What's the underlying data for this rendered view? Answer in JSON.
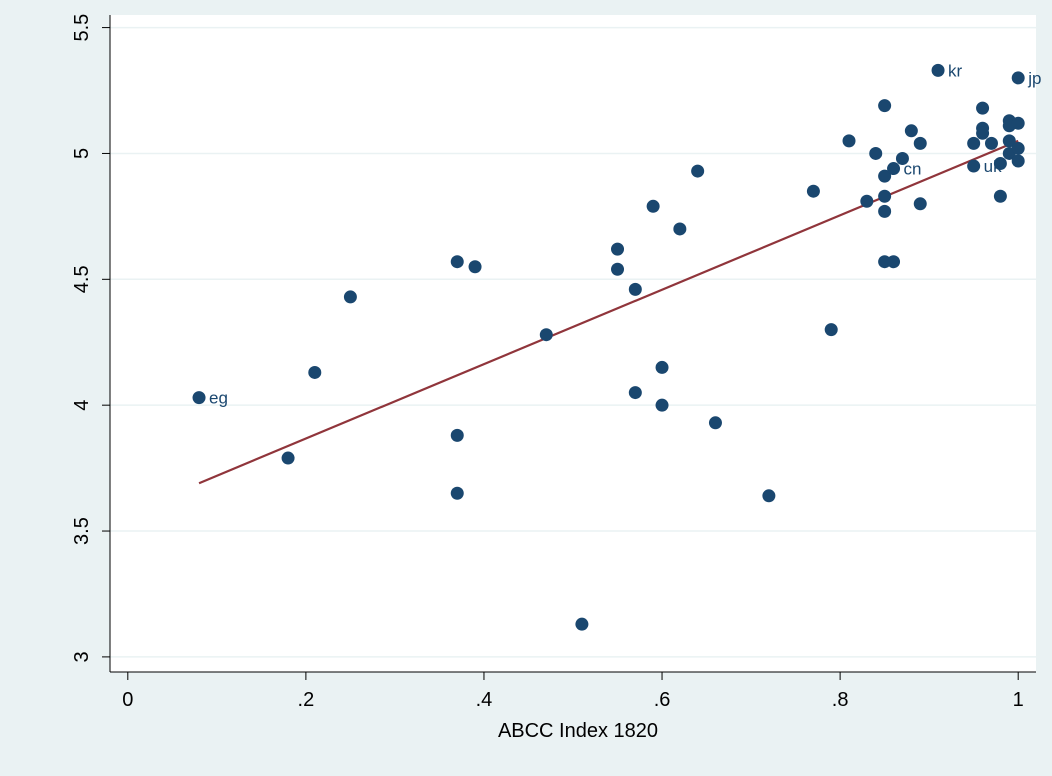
{
  "colors": {
    "outer_background": "#eaf2f3",
    "plot_background": "#ffffff",
    "gridline": "#eaf2f3",
    "marker": "#1a476f",
    "fit_line": "#90353b",
    "axis": "#000000"
  },
  "chart_data": {
    "type": "scatter",
    "title": "",
    "xlabel": "ABCC Index 1820",
    "ylabel": "",
    "xlim": [
      -0.02,
      1.02
    ],
    "ylim": [
      2.94,
      5.55
    ],
    "x_ticks": [
      0,
      0.2,
      0.4,
      0.6,
      0.8,
      1
    ],
    "x_tick_labels": [
      "0",
      ".2",
      ".4",
      ".6",
      ".8",
      "1"
    ],
    "y_ticks": [
      3,
      3.5,
      4,
      4.5,
      5,
      5.5
    ],
    "y_tick_labels": [
      "3",
      "3.5",
      "4",
      "4.5",
      "5",
      "5.5"
    ],
    "grid": true,
    "legend": "none",
    "series": [
      {
        "points": [
          {
            "x": 0.08,
            "y": 4.03,
            "label": "eg"
          },
          {
            "x": 0.18,
            "y": 3.79
          },
          {
            "x": 0.21,
            "y": 4.13
          },
          {
            "x": 0.25,
            "y": 4.43
          },
          {
            "x": 0.37,
            "y": 4.57
          },
          {
            "x": 0.37,
            "y": 3.88
          },
          {
            "x": 0.37,
            "y": 3.65
          },
          {
            "x": 0.39,
            "y": 4.55
          },
          {
            "x": 0.47,
            "y": 4.28
          },
          {
            "x": 0.51,
            "y": 3.13
          },
          {
            "x": 0.55,
            "y": 4.62
          },
          {
            "x": 0.55,
            "y": 4.54
          },
          {
            "x": 0.57,
            "y": 4.46
          },
          {
            "x": 0.57,
            "y": 4.05
          },
          {
            "x": 0.59,
            "y": 4.79
          },
          {
            "x": 0.6,
            "y": 4.15
          },
          {
            "x": 0.6,
            "y": 4.0
          },
          {
            "x": 0.62,
            "y": 4.7
          },
          {
            "x": 0.64,
            "y": 4.93
          },
          {
            "x": 0.66,
            "y": 3.93
          },
          {
            "x": 0.72,
            "y": 3.64
          },
          {
            "x": 0.77,
            "y": 4.85
          },
          {
            "x": 0.79,
            "y": 4.3
          },
          {
            "x": 0.81,
            "y": 5.05
          },
          {
            "x": 0.83,
            "y": 4.81
          },
          {
            "x": 0.84,
            "y": 5.0
          },
          {
            "x": 0.85,
            "y": 5.19
          },
          {
            "x": 0.85,
            "y": 4.91
          },
          {
            "x": 0.85,
            "y": 4.83
          },
          {
            "x": 0.85,
            "y": 4.77
          },
          {
            "x": 0.85,
            "y": 4.57
          },
          {
            "x": 0.86,
            "y": 4.57
          },
          {
            "x": 0.86,
            "y": 4.94,
            "label": "cn"
          },
          {
            "x": 0.87,
            "y": 4.98
          },
          {
            "x": 0.88,
            "y": 5.09
          },
          {
            "x": 0.89,
            "y": 5.04
          },
          {
            "x": 0.89,
            "y": 4.8
          },
          {
            "x": 0.91,
            "y": 5.33,
            "label": "kr"
          },
          {
            "x": 0.95,
            "y": 5.04
          },
          {
            "x": 0.95,
            "y": 4.95,
            "label": "uk"
          },
          {
            "x": 0.96,
            "y": 5.18
          },
          {
            "x": 0.96,
            "y": 5.1
          },
          {
            "x": 0.96,
            "y": 5.08
          },
          {
            "x": 0.97,
            "y": 5.04
          },
          {
            "x": 0.98,
            "y": 4.96
          },
          {
            "x": 0.98,
            "y": 4.83
          },
          {
            "x": 0.99,
            "y": 5.13
          },
          {
            "x": 0.99,
            "y": 5.11
          },
          {
            "x": 0.99,
            "y": 5.05
          },
          {
            "x": 0.99,
            "y": 5.0
          },
          {
            "x": 1.0,
            "y": 5.3,
            "label": "jp"
          },
          {
            "x": 1.0,
            "y": 5.12
          },
          {
            "x": 1.0,
            "y": 5.02
          },
          {
            "x": 1.0,
            "y": 4.97
          }
        ]
      }
    ],
    "fit_line": {
      "x": [
        0.08,
        1.0
      ],
      "y": [
        3.69,
        5.05
      ]
    }
  }
}
